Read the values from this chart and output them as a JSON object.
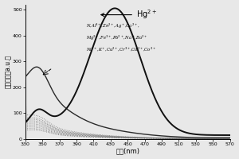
{
  "xlim": [
    330,
    570
  ],
  "ylim": [
    0,
    520
  ],
  "xticks": [
    330,
    350,
    370,
    390,
    410,
    430,
    450,
    470,
    490,
    510,
    530,
    550,
    570
  ],
  "yticks": [
    0,
    100,
    200,
    300,
    400,
    500
  ],
  "xlabel": "波长(nm)",
  "ylabel": "荧光强度（a.u.）",
  "hg_label": "Hg$^{2+}$",
  "annotation_line1": "N,Al$^{3+}$,Zn$^{2+}$,Ag$^+$,Ca$^{2+}$,",
  "annotation_line2": "Mg$^{2+}$,Fe$^{3+}$,Pb$^{2+}$,Na$^+$,Ba$^{2+}$",
  "annotation_line3": "Ni$^{2+}$,K$^+$,Cu$^{2+}$,Cr$^{3+}$,Cd$^{2+}$,Co$^{2+}$",
  "background_color": "#e8e8e8",
  "line_color_main": "#111111",
  "line_color_second": "#2a2a2a",
  "line_color_others": "#666666"
}
